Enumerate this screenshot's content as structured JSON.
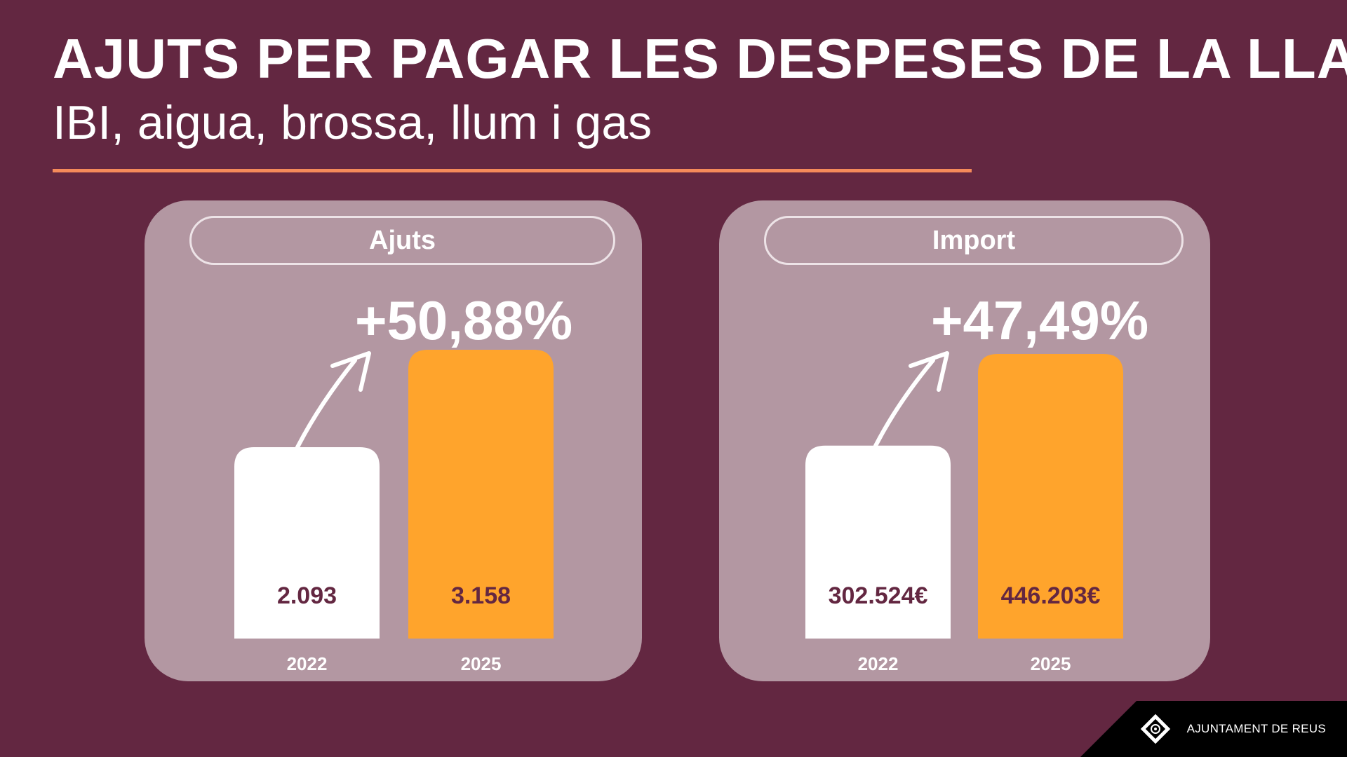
{
  "header": {
    "title": "AJUTS PER PAGAR LES DESPESES DE LA LLAR",
    "subtitle": "IBI, aigua, brossa, llum i gas"
  },
  "colors": {
    "background": "#632741",
    "panel": "#b397a2",
    "accent_line": "#f58a5a",
    "bar_2022": "#ffffff",
    "bar_2025": "#ffa42c"
  },
  "chart_data": [
    {
      "type": "bar",
      "title": "Ajuts",
      "categories": [
        "2022",
        "2025"
      ],
      "values": [
        2093,
        3158
      ],
      "value_labels": [
        "2.093",
        "3.158"
      ],
      "change_label": "+50,88%",
      "colors": [
        "#ffffff",
        "#ffa42c"
      ]
    },
    {
      "type": "bar",
      "title": "Import",
      "categories": [
        "2022",
        "2025"
      ],
      "values": [
        302524,
        446203
      ],
      "value_labels": [
        "302.524€",
        "446.203€"
      ],
      "change_label": "+47,49%",
      "colors": [
        "#ffffff",
        "#ffa42c"
      ]
    }
  ],
  "footer": {
    "logo_text": "AJUNTAMENT DE REUS",
    "logo_icon": "reus-shield-icon"
  }
}
